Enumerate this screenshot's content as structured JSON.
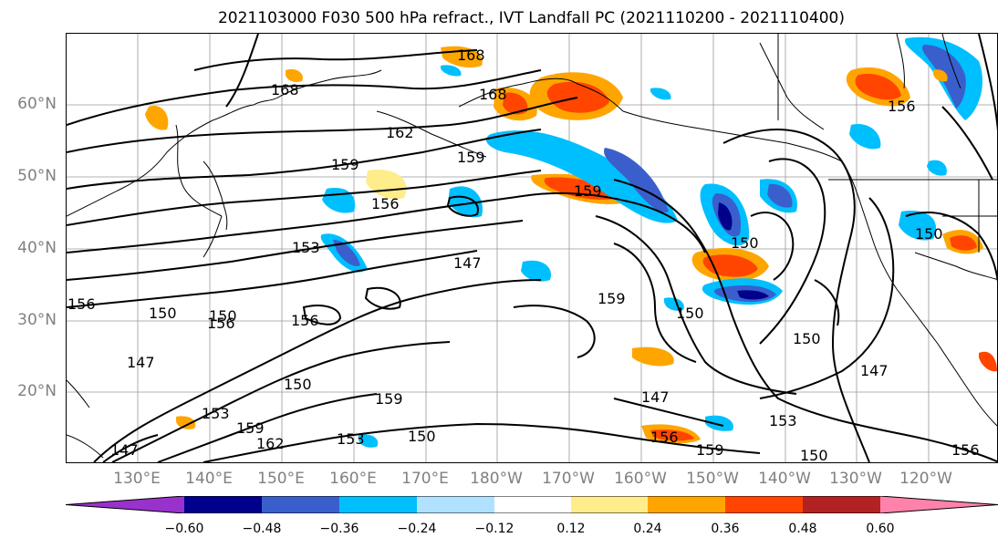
{
  "title": "2021103000 F030 500 hPa refract., IVT Landfall PC (2021110200 - 2021110400)",
  "lat_labels": [
    "60°N",
    "50°N",
    "40°N",
    "30°N",
    "20°N"
  ],
  "lon_labels": [
    "130°E",
    "140°E",
    "150°E",
    "160°E",
    "170°E",
    "180°W",
    "170°W",
    "160°W",
    "150°W",
    "140°W",
    "130°W",
    "120°W"
  ],
  "contour_labels": [
    "168",
    "168",
    "168",
    "162",
    "159",
    "159",
    "156",
    "159",
    "156",
    "153",
    "147",
    "156",
    "150",
    "156",
    "147",
    "150",
    "150",
    "159",
    "153",
    "159",
    "162",
    "153",
    "150",
    "147",
    "147",
    "156",
    "159",
    "150",
    "147",
    "150",
    "153",
    "150",
    "156",
    "156",
    "159",
    "150",
    "150"
  ],
  "colorbar": {
    "ticks": [
      "−0.60",
      "−0.48",
      "−0.36",
      "−0.24",
      "−0.12",
      "0.12",
      "0.24",
      "0.36",
      "0.48",
      "0.60"
    ],
    "colors": [
      "#9932cc",
      "#00008b",
      "#3a5fcd",
      "#00bfff",
      "#b0e2ff",
      "#ffffff",
      "#ffec8b",
      "#ffa500",
      "#ff4500",
      "#b22222",
      "#ff82ab"
    ]
  }
}
